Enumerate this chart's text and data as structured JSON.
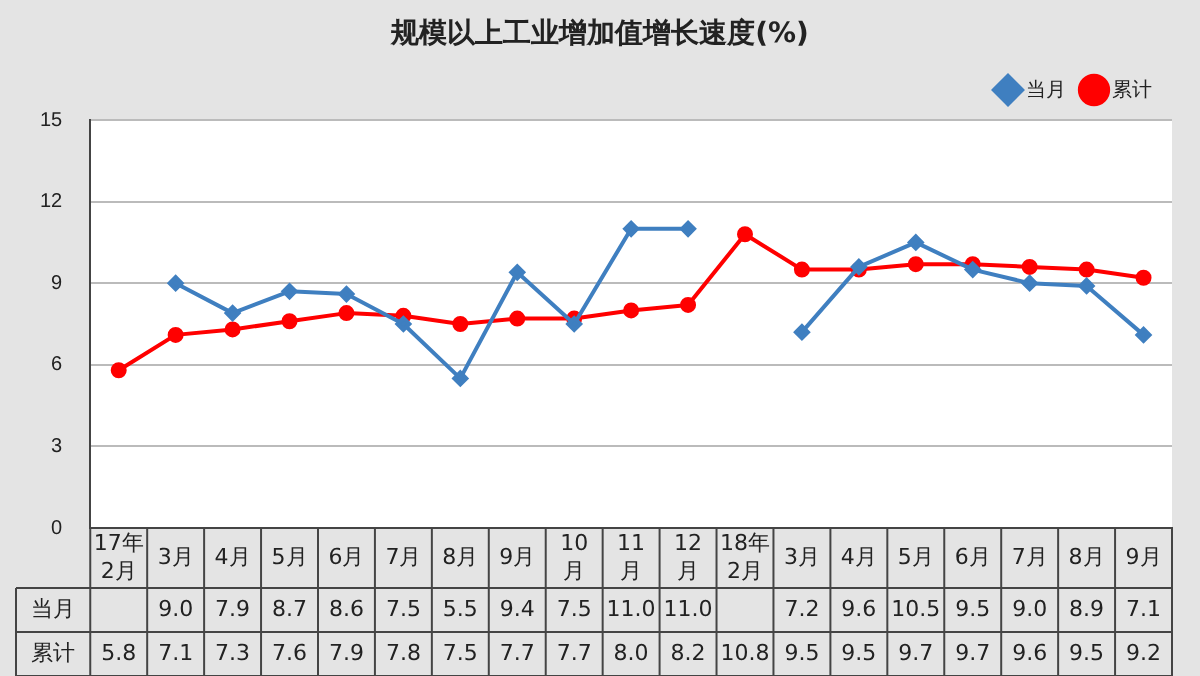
{
  "chart_data": {
    "type": "line",
    "title": "规模以上工业增加值增长速度(%)",
    "categories": [
      "17年2月",
      "3月",
      "4月",
      "5月",
      "6月",
      "7月",
      "8月",
      "9月",
      "10月",
      "11月",
      "12月",
      "18年2月",
      "3月",
      "4月",
      "5月",
      "6月",
      "7月",
      "8月",
      "9月"
    ],
    "series": [
      {
        "name": "当月",
        "color": "#3f7fc0",
        "marker": "diamond",
        "values": [
          null,
          9.0,
          7.9,
          8.7,
          8.6,
          7.5,
          5.5,
          9.4,
          7.5,
          11.0,
          11.0,
          null,
          7.2,
          9.6,
          10.5,
          9.5,
          9.0,
          8.9,
          7.1
        ],
        "value_labels": [
          null,
          "9.0",
          "7.9",
          "8.7",
          "8.6",
          "7.5",
          "5.5",
          "9.4",
          "7.5",
          "11.0",
          "11.0",
          null,
          "7.2",
          "9.6",
          "10.5",
          "9.5",
          "9.0",
          "8.9",
          "7.1"
        ]
      },
      {
        "name": "累计",
        "color": "#ff0000",
        "marker": "circle",
        "values": [
          5.8,
          7.1,
          7.3,
          7.6,
          7.9,
          7.8,
          7.5,
          7.7,
          7.7,
          8.0,
          8.2,
          10.8,
          9.5,
          9.5,
          9.7,
          9.7,
          9.6,
          9.5,
          9.2
        ],
        "value_labels": [
          "5.8",
          "7.1",
          "7.3",
          "7.6",
          "7.9",
          "7.8",
          "7.5",
          "7.7",
          "7.7",
          "8.0",
          "8.2",
          "10.8",
          "9.5",
          "9.5",
          "9.7",
          "9.7",
          "9.6",
          "9.5",
          "9.2"
        ]
      }
    ],
    "ylim": [
      0,
      15
    ],
    "yticks": [
      0,
      3,
      6,
      9,
      12,
      15
    ],
    "grid": "y",
    "legend": "top right"
  }
}
